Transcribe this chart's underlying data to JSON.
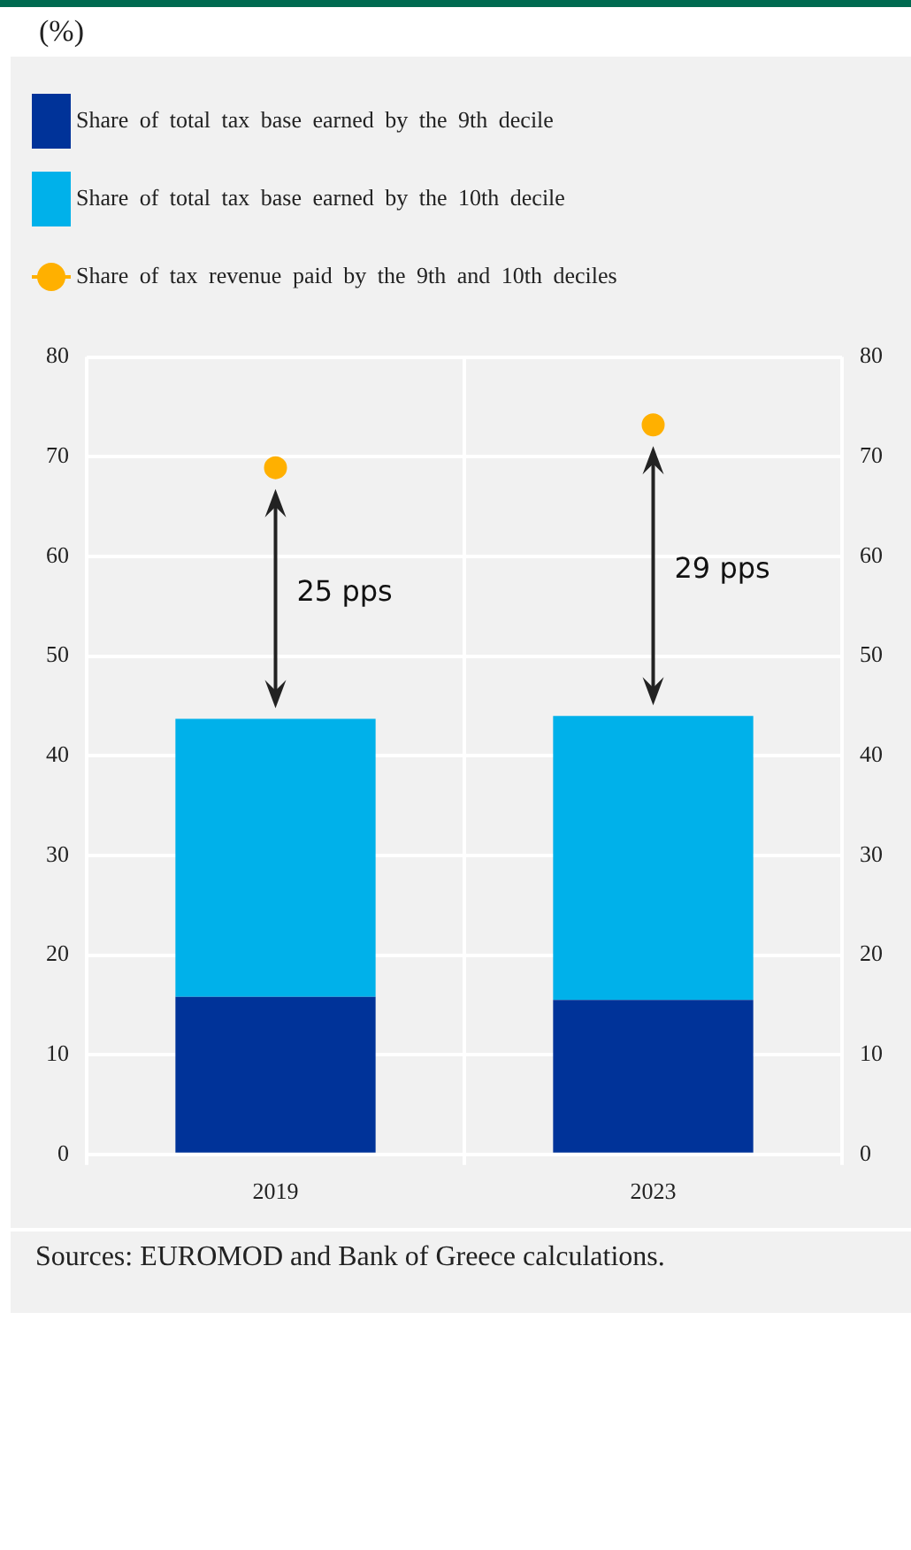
{
  "chart_data": {
    "type": "bar",
    "stacked": true,
    "categories": [
      "2019",
      "2023"
    ],
    "series": [
      {
        "name": "Share of total tax base earned by the 9th decile",
        "color": "#003399",
        "values": [
          15.8,
          15.5
        ]
      },
      {
        "name": "Share of total tax base earned by the 10th decile",
        "color": "#00b1ea",
        "values": [
          27.9,
          28.5
        ]
      },
      {
        "name": "Share of tax revenue paid by the 9th and 10th deciles",
        "type": "scatter",
        "color": "#ffb000",
        "values": [
          68.9,
          73.2
        ]
      }
    ],
    "ylim": [
      0,
      80
    ],
    "yticks": [
      0,
      10,
      20,
      30,
      40,
      50,
      60,
      70,
      80
    ],
    "y2lim": [
      0,
      80
    ],
    "y2ticks": [
      0,
      10,
      20,
      30,
      40,
      50,
      60,
      70,
      80
    ],
    "grid": true,
    "legend": "top",
    "marker": "circle",
    "annotations": [
      "(%)",
      "25 pps",
      "29 pps",
      "Sources: EUROMOD and Bank of Greece calculations."
    ]
  }
}
